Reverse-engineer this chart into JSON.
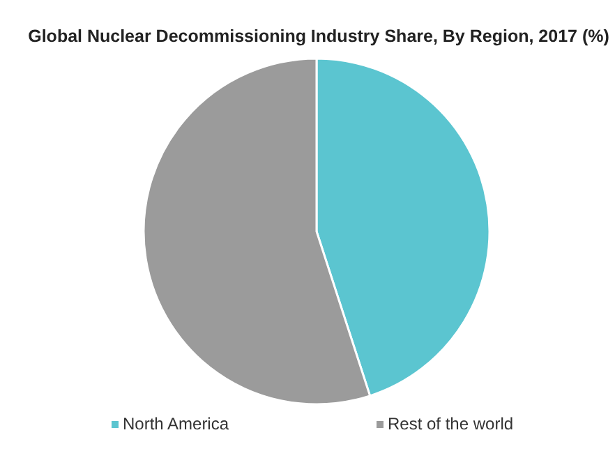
{
  "chart_data": {
    "type": "pie",
    "title": "Global Nuclear Decommissioning Industry Share, By Region, 2017 (%)",
    "categories": [
      "North America",
      "Rest of the world"
    ],
    "values": [
      45,
      55
    ],
    "colors": [
      "#5bc5d0",
      "#9b9b9b"
    ],
    "legend": "bottom"
  }
}
